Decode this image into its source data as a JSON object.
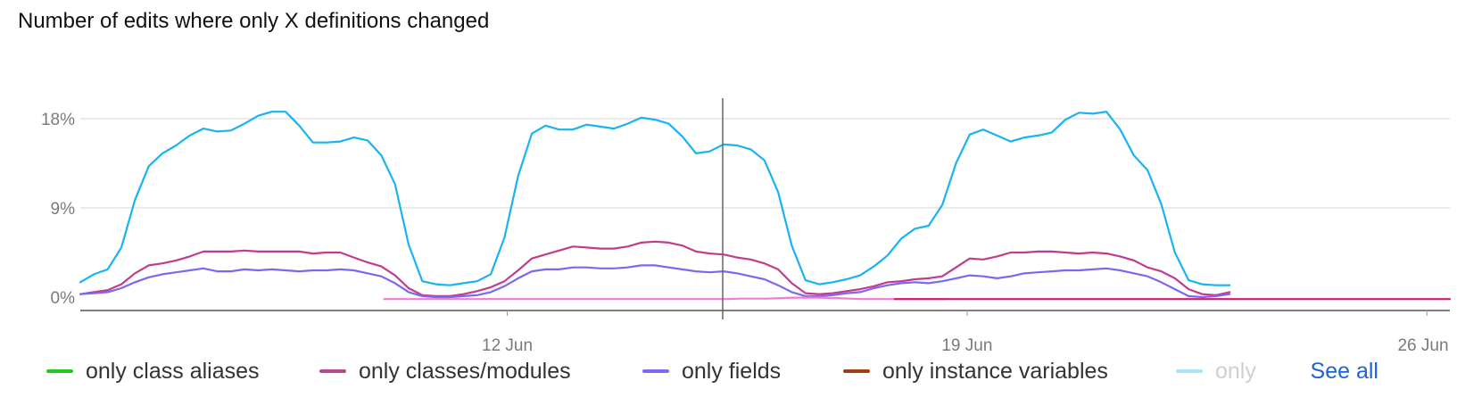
{
  "title": "Number of edits where only X definitions changed",
  "see_all_label": "See all",
  "chart_data": {
    "type": "line",
    "title": "Number of edits where only X definitions changed",
    "xlabel": "",
    "ylabel": "",
    "ylim": [
      0,
      20
    ],
    "y_ticks": [
      "0%",
      "9%",
      "18%"
    ],
    "x_ticks": [
      "12 Jun",
      "19 Jun",
      "26 Jun"
    ],
    "x_range_days": [
      5.5,
      26.35
    ],
    "legend_position": "bottom",
    "series": [
      {
        "name": "only instance variables",
        "color": "#19b3f2",
        "start": 5.5,
        "step": 0.2083,
        "values": [
          1.5,
          2.3,
          2.8,
          5.0,
          9.8,
          13.2,
          14.5,
          15.3,
          16.3,
          17.0,
          16.7,
          16.8,
          17.5,
          18.3,
          18.7,
          18.7,
          17.3,
          15.6,
          15.6,
          15.7,
          16.1,
          15.8,
          14.3,
          11.4,
          5.3,
          1.6,
          1.3,
          1.2,
          1.4,
          1.6,
          2.3,
          6.0,
          12.2,
          16.5,
          17.3,
          16.9,
          16.9,
          17.4,
          17.2,
          17.0,
          17.5,
          18.1,
          17.9,
          17.5,
          16.2,
          14.5,
          14.7,
          15.4,
          15.3,
          14.9,
          13.8,
          10.6,
          5.2,
          1.7,
          1.3,
          1.5,
          1.8,
          2.2,
          3.1,
          4.2,
          5.9,
          6.9,
          7.2,
          9.3,
          13.5,
          16.4,
          16.9,
          16.3,
          15.7,
          16.1,
          16.3,
          16.6,
          17.9,
          18.6,
          18.5,
          18.7,
          16.9,
          14.3,
          12.8,
          9.4,
          4.5,
          1.7,
          1.3,
          1.2,
          1.2
        ]
      },
      {
        "name": "only classes/modules",
        "color": "#c23c8a",
        "start": 5.5,
        "step": 0.2083,
        "values": [
          0.3,
          0.5,
          0.7,
          1.3,
          2.4,
          3.2,
          3.4,
          3.7,
          4.1,
          4.6,
          4.6,
          4.6,
          4.7,
          4.6,
          4.6,
          4.6,
          4.6,
          4.4,
          4.5,
          4.5,
          4.0,
          3.5,
          3.1,
          2.2,
          0.9,
          0.2,
          0.1,
          0.1,
          0.3,
          0.6,
          1.0,
          1.6,
          2.7,
          3.9,
          4.3,
          4.7,
          5.1,
          5.0,
          4.9,
          4.9,
          5.1,
          5.5,
          5.6,
          5.5,
          5.2,
          4.6,
          4.4,
          4.3,
          4.0,
          3.8,
          3.4,
          2.8,
          1.4,
          0.4,
          0.3,
          0.4,
          0.6,
          0.8,
          1.1,
          1.5,
          1.6,
          1.8,
          1.9,
          2.1,
          3.0,
          3.9,
          3.8,
          4.1,
          4.5,
          4.5,
          4.6,
          4.6,
          4.5,
          4.4,
          4.5,
          4.4,
          4.1,
          3.7,
          3.0,
          2.6,
          1.9,
          0.8,
          0.3,
          0.2,
          0.5
        ]
      },
      {
        "name": "only fields",
        "color": "#7b68ee",
        "start": 5.5,
        "step": 0.2083,
        "values": [
          0.3,
          0.4,
          0.5,
          0.9,
          1.5,
          2.0,
          2.3,
          2.5,
          2.7,
          2.9,
          2.6,
          2.6,
          2.8,
          2.7,
          2.8,
          2.7,
          2.6,
          2.7,
          2.7,
          2.8,
          2.7,
          2.4,
          2.1,
          1.4,
          0.5,
          0.1,
          0.0,
          0.0,
          0.1,
          0.2,
          0.5,
          1.1,
          1.9,
          2.6,
          2.8,
          2.8,
          3.0,
          3.0,
          2.9,
          2.9,
          3.0,
          3.2,
          3.2,
          3.0,
          2.8,
          2.6,
          2.5,
          2.6,
          2.4,
          2.1,
          1.8,
          1.2,
          0.5,
          0.1,
          0.1,
          0.2,
          0.4,
          0.5,
          0.9,
          1.2,
          1.4,
          1.5,
          1.4,
          1.6,
          1.9,
          2.2,
          2.1,
          1.9,
          2.1,
          2.4,
          2.5,
          2.6,
          2.7,
          2.7,
          2.8,
          2.9,
          2.7,
          2.4,
          2.1,
          1.5,
          0.8,
          0.1,
          0.0,
          0.1,
          0.3
        ]
      },
      {
        "name": "only class aliases",
        "color": "#f57ad3",
        "start": 10.125,
        "step": 0.2083,
        "values": [
          -0.2,
          -0.2,
          -0.2,
          -0.2,
          -0.2,
          -0.2,
          -0.2,
          -0.2,
          -0.2,
          -0.2,
          -0.2,
          -0.2,
          -0.2,
          -0.2,
          -0.2,
          -0.2,
          -0.2,
          -0.2,
          -0.2,
          -0.2,
          -0.2,
          -0.2,
          -0.2,
          -0.2,
          -0.2,
          -0.2,
          -0.15,
          -0.15,
          -0.15,
          -0.1,
          -0.05,
          -0.05,
          -0.05,
          -0.1,
          -0.15,
          -0.2,
          -0.2,
          -0.2,
          -0.2,
          -0.2,
          -0.2,
          -0.2
        ]
      },
      {
        "name": "only classes/modules",
        "color": "#d6176e",
        "start": 17.9,
        "step": 0.2083,
        "values": [
          -0.2,
          -0.2,
          -0.2,
          -0.2,
          -0.2,
          -0.2,
          -0.2,
          -0.2,
          -0.2,
          -0.2,
          -0.2,
          -0.2,
          -0.2,
          -0.2,
          -0.2,
          -0.2,
          -0.2,
          -0.2,
          -0.2,
          -0.2,
          -0.2,
          -0.2,
          -0.2,
          -0.2,
          -0.2,
          -0.2,
          -0.2,
          -0.2,
          -0.2,
          -0.2,
          -0.2,
          -0.2,
          -0.2,
          -0.2,
          -0.2,
          -0.2,
          -0.2,
          -0.2,
          -0.2,
          -0.2,
          -0.2,
          -0.2,
          -0.2,
          -0.2,
          -0.2,
          -0.2,
          -0.2,
          -0.2,
          -0.2,
          -0.2,
          -0.2,
          -0.2,
          -0.2,
          -0.2,
          -0.2,
          -0.2,
          -0.2,
          -0.2,
          -0.2,
          -0.2,
          -0.2,
          -0.2,
          -0.2,
          -0.2
        ]
      }
    ],
    "legend": [
      {
        "label": "only class aliases",
        "color": "#1fc71f"
      },
      {
        "label": "only classes/modules",
        "color": "#b8488f"
      },
      {
        "label": "only fields",
        "color": "#7b6bef"
      },
      {
        "label": "only instance variables",
        "color": "#a33d0c"
      },
      {
        "label": "only ",
        "color": "#a7e3fb"
      }
    ]
  }
}
